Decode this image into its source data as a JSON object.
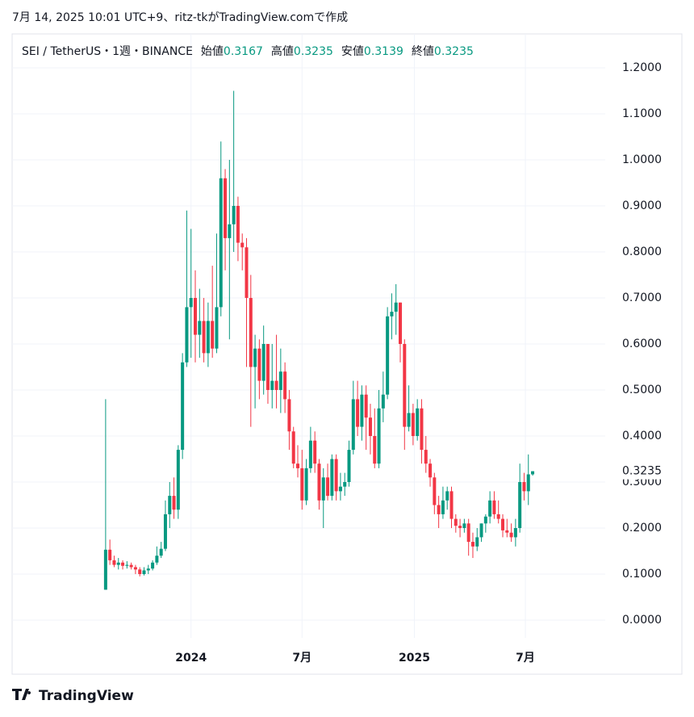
{
  "title": "7月 14, 2025 10:01 UTC+9、ritz-tkがTradingView.comで作成",
  "brand": "TradingView",
  "chart_data": {
    "type": "candlestick",
    "symbol_title": "SEI / TetherUS・1週・BINANCE",
    "ohlc_labels": [
      "始値",
      "高値",
      "安値",
      "終値"
    ],
    "up_color": "#089981",
    "down_color": "#f23645",
    "open": [
      0.066,
      0.153,
      0.13,
      0.12,
      0.125,
      0.118,
      0.12,
      0.115,
      0.11,
      0.1,
      0.108,
      0.112,
      0.125,
      0.14,
      0.155,
      0.23,
      0.27,
      0.24,
      0.37,
      0.56,
      0.68,
      0.7,
      0.62,
      0.65,
      0.58,
      0.65,
      0.59,
      0.68,
      0.96,
      0.83,
      0.86,
      0.9,
      0.82,
      0.81,
      0.7,
      0.55,
      0.59,
      0.52,
      0.6,
      0.5,
      0.52,
      0.5,
      0.54,
      0.48,
      0.41,
      0.34,
      0.33,
      0.26,
      0.33,
      0.39,
      0.34,
      0.26,
      0.31,
      0.27,
      0.35,
      0.28,
      0.29,
      0.3,
      0.37,
      0.48,
      0.42,
      0.49,
      0.44,
      0.4,
      0.34,
      0.46,
      0.49,
      0.66,
      0.67,
      0.69,
      0.6,
      0.42,
      0.45,
      0.4,
      0.46,
      0.37,
      0.34,
      0.31,
      0.25,
      0.23,
      0.26,
      0.28,
      0.22,
      0.205,
      0.2,
      0.21,
      0.17,
      0.16,
      0.18,
      0.21,
      0.225,
      0.26,
      0.23,
      0.22,
      0.195,
      0.19,
      0.18,
      0.2,
      0.3,
      0.28,
      0.3167
    ],
    "high": [
      0.48,
      0.175,
      0.14,
      0.135,
      0.13,
      0.128,
      0.125,
      0.12,
      0.115,
      0.115,
      0.12,
      0.13,
      0.16,
      0.17,
      0.26,
      0.3,
      0.31,
      0.38,
      0.58,
      0.89,
      0.85,
      0.76,
      0.72,
      0.7,
      0.69,
      0.77,
      0.84,
      1.04,
      0.98,
      1.0,
      1.15,
      0.92,
      0.84,
      0.83,
      0.75,
      0.62,
      0.61,
      0.64,
      0.6,
      0.6,
      0.62,
      0.59,
      0.56,
      0.5,
      0.42,
      0.38,
      0.37,
      0.35,
      0.42,
      0.41,
      0.35,
      0.33,
      0.34,
      0.36,
      0.36,
      0.32,
      0.32,
      0.39,
      0.52,
      0.52,
      0.51,
      0.51,
      0.47,
      0.46,
      0.5,
      0.54,
      0.68,
      0.71,
      0.73,
      0.69,
      0.61,
      0.51,
      0.47,
      0.48,
      0.48,
      0.4,
      0.35,
      0.32,
      0.27,
      0.29,
      0.29,
      0.29,
      0.23,
      0.22,
      0.22,
      0.22,
      0.19,
      0.2,
      0.21,
      0.23,
      0.28,
      0.28,
      0.26,
      0.23,
      0.22,
      0.21,
      0.22,
      0.34,
      0.32,
      0.36,
      0.3235
    ],
    "low": [
      0.066,
      0.12,
      0.115,
      0.11,
      0.11,
      0.112,
      0.11,
      0.1,
      0.095,
      0.097,
      0.1,
      0.108,
      0.12,
      0.135,
      0.15,
      0.2,
      0.22,
      0.22,
      0.35,
      0.55,
      0.57,
      0.56,
      0.57,
      0.56,
      0.55,
      0.57,
      0.58,
      0.66,
      0.76,
      0.61,
      0.8,
      0.78,
      0.76,
      0.55,
      0.42,
      0.46,
      0.48,
      0.49,
      0.47,
      0.46,
      0.46,
      0.45,
      0.45,
      0.37,
      0.33,
      0.31,
      0.24,
      0.25,
      0.32,
      0.32,
      0.24,
      0.2,
      0.26,
      0.26,
      0.26,
      0.26,
      0.27,
      0.29,
      0.36,
      0.4,
      0.39,
      0.37,
      0.36,
      0.33,
      0.33,
      0.43,
      0.48,
      0.61,
      0.62,
      0.56,
      0.37,
      0.41,
      0.38,
      0.39,
      0.34,
      0.32,
      0.29,
      0.23,
      0.2,
      0.22,
      0.24,
      0.2,
      0.19,
      0.18,
      0.19,
      0.14,
      0.135,
      0.15,
      0.17,
      0.19,
      0.21,
      0.22,
      0.21,
      0.18,
      0.18,
      0.17,
      0.16,
      0.19,
      0.26,
      0.25,
      0.3139
    ],
    "close": [
      0.153,
      0.13,
      0.12,
      0.125,
      0.118,
      0.12,
      0.115,
      0.11,
      0.1,
      0.108,
      0.112,
      0.125,
      0.14,
      0.155,
      0.23,
      0.27,
      0.24,
      0.37,
      0.56,
      0.68,
      0.7,
      0.62,
      0.65,
      0.58,
      0.65,
      0.59,
      0.68,
      0.96,
      0.83,
      0.86,
      0.9,
      0.82,
      0.81,
      0.7,
      0.55,
      0.59,
      0.52,
      0.6,
      0.5,
      0.52,
      0.5,
      0.54,
      0.48,
      0.41,
      0.34,
      0.33,
      0.26,
      0.33,
      0.39,
      0.34,
      0.26,
      0.31,
      0.27,
      0.35,
      0.28,
      0.29,
      0.3,
      0.37,
      0.48,
      0.42,
      0.49,
      0.44,
      0.4,
      0.34,
      0.46,
      0.49,
      0.66,
      0.67,
      0.69,
      0.6,
      0.42,
      0.45,
      0.4,
      0.46,
      0.37,
      0.34,
      0.31,
      0.25,
      0.23,
      0.26,
      0.28,
      0.22,
      0.205,
      0.2,
      0.21,
      0.17,
      0.16,
      0.18,
      0.21,
      0.225,
      0.26,
      0.23,
      0.22,
      0.195,
      0.19,
      0.18,
      0.2,
      0.3,
      0.28,
      0.3167,
      0.3235
    ],
    "xlim": [
      -21.9,
      117
    ],
    "xticks": [
      {
        "value": 20,
        "label": "2024"
      },
      {
        "value": 46,
        "label": "7月"
      },
      {
        "value": 72.3,
        "label": "2025"
      },
      {
        "value": 98.3,
        "label": "7月"
      }
    ],
    "ylim": [
      -0.0386,
      1.2737
    ],
    "yticks": [
      {
        "value": 0,
        "label": "0.0000"
      },
      {
        "value": 0.1,
        "label": "0.1000"
      },
      {
        "value": 0.2,
        "label": "0.2000"
      },
      {
        "value": 0.3,
        "label": "0.3000"
      },
      {
        "value": 0.4,
        "label": "0.4000"
      },
      {
        "value": 0.5,
        "label": "0.5000"
      },
      {
        "value": 0.6,
        "label": "0.6000"
      },
      {
        "value": 0.7,
        "label": "0.7000"
      },
      {
        "value": 0.8,
        "label": "0.8000"
      },
      {
        "value": 0.9,
        "label": "0.9000"
      },
      {
        "value": 1.0,
        "label": "1.0000"
      },
      {
        "value": 1.1,
        "label": "1.1000"
      },
      {
        "value": 1.2,
        "label": "1.2000"
      }
    ],
    "grid": true
  }
}
